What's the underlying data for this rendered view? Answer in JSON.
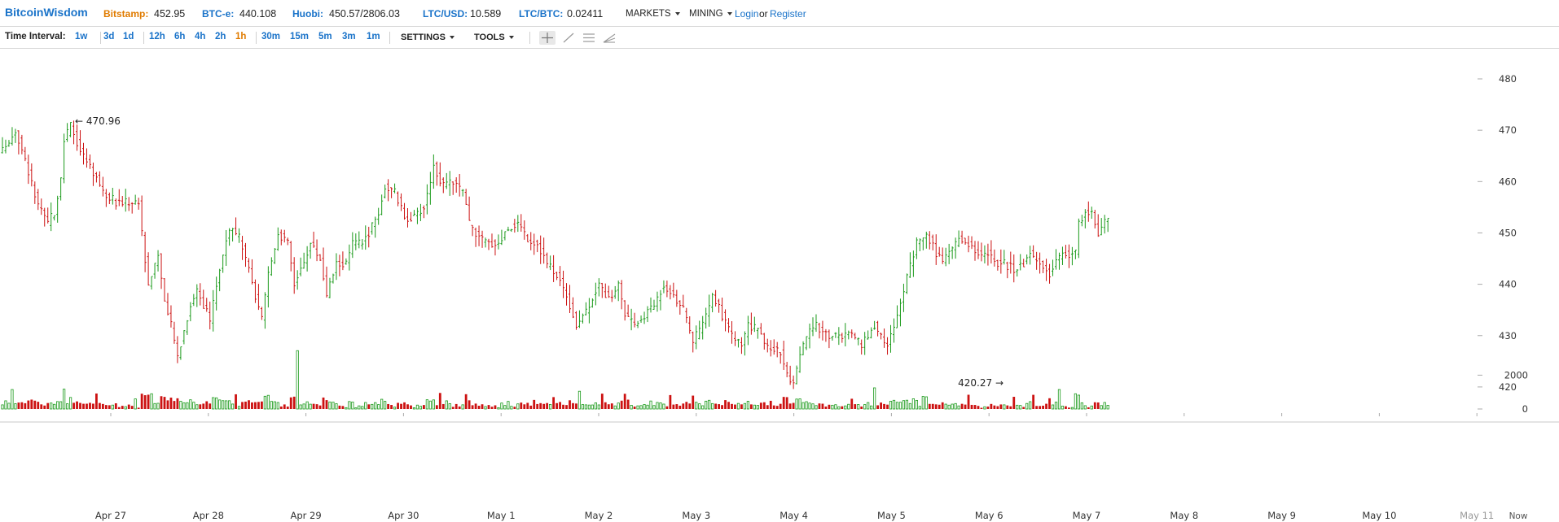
{
  "header": {
    "brand": "BitcoinWisdom",
    "tickers": [
      {
        "label": "Bitstamp:",
        "value": "452.95",
        "color": "#e07b00"
      },
      {
        "label": "BTC-e:",
        "value": "440.108",
        "color": "#1a73c9"
      },
      {
        "label": "Huobi:",
        "value": "450.57/2806.03",
        "color": "#1a73c9"
      },
      {
        "label": "LTC/USD:",
        "value": "10.589",
        "color": "#1a73c9"
      },
      {
        "label": "LTC/BTC:",
        "value": "0.02411",
        "color": "#1a73c9"
      }
    ],
    "menus": [
      "MARKETS",
      "MINING"
    ],
    "login": "Login",
    "or": "or",
    "register": "Register"
  },
  "toolbar": {
    "label": "Time Interval:",
    "intervals": [
      "1w",
      "3d",
      "1d",
      "12h",
      "6h",
      "4h",
      "2h",
      "1h",
      "30m",
      "15m",
      "5m",
      "3m",
      "1m"
    ],
    "active_interval": "1h",
    "settings": "SETTINGS",
    "tools": "TOOLS",
    "tool_icons": [
      "crosshair-icon",
      "line-tool-icon",
      "horizontal-lines-icon",
      "fibonacci-tool-icon"
    ]
  },
  "chart_data": {
    "type": "ohlc",
    "colors": {
      "up": "#1a9a1a",
      "down": "#cc1111"
    },
    "price_axis": {
      "ticks": [
        420,
        430,
        440,
        450,
        460,
        470,
        480
      ],
      "range": [
        414,
        488
      ]
    },
    "volume_axis": {
      "ticks": [
        0,
        2000
      ],
      "range": [
        0,
        3600
      ]
    },
    "x_labels": [
      "Apr 27",
      "Apr 28",
      "Apr 29",
      "Apr 30",
      "May 1",
      "May 2",
      "May 3",
      "May 4",
      "May 5",
      "May 6",
      "May 7",
      "May 8",
      "May 9",
      "May 10",
      "May 11"
    ],
    "x_label_last": "Now",
    "annotations": [
      {
        "text": "← 470.96",
        "value": 470.96
      },
      {
        "text": "420.27 →",
        "value": 420.27
      }
    ],
    "price_path": [
      [
        0,
        466
      ],
      [
        4,
        470
      ],
      [
        8,
        462
      ],
      [
        11,
        455
      ],
      [
        14,
        452
      ],
      [
        16,
        454
      ],
      [
        18,
        460
      ],
      [
        19,
        468
      ],
      [
        21,
        471
      ],
      [
        24,
        466
      ],
      [
        28,
        462
      ],
      [
        31,
        458
      ],
      [
        35,
        456
      ],
      [
        39,
        456
      ],
      [
        42,
        456
      ],
      [
        43,
        450
      ],
      [
        45,
        440
      ],
      [
        48,
        446
      ],
      [
        50,
        436
      ],
      [
        52,
        432
      ],
      [
        54,
        426
      ],
      [
        56,
        431
      ],
      [
        58,
        436
      ],
      [
        60,
        439
      ],
      [
        62,
        436
      ],
      [
        64,
        433
      ],
      [
        66,
        440
      ],
      [
        68,
        446
      ],
      [
        70,
        451
      ],
      [
        73,
        449
      ],
      [
        75,
        445
      ],
      [
        77,
        440
      ],
      [
        79,
        435
      ],
      [
        80,
        433
      ],
      [
        82,
        442
      ],
      [
        85,
        450
      ],
      [
        88,
        448
      ],
      [
        90,
        440
      ],
      [
        92,
        443
      ],
      [
        95,
        448
      ],
      [
        98,
        445
      ],
      [
        100,
        438
      ],
      [
        103,
        444
      ],
      [
        106,
        444
      ],
      [
        108,
        448
      ],
      [
        111,
        448
      ],
      [
        113,
        450
      ],
      [
        116,
        454
      ],
      [
        118,
        459
      ],
      [
        121,
        458
      ],
      [
        124,
        453
      ],
      [
        127,
        453
      ],
      [
        130,
        455
      ],
      [
        133,
        463
      ],
      [
        136,
        459
      ],
      [
        139,
        460
      ],
      [
        142,
        458
      ],
      [
        144,
        452
      ],
      [
        147,
        449
      ],
      [
        150,
        448
      ],
      [
        153,
        448
      ],
      [
        156,
        451
      ],
      [
        159,
        452
      ],
      [
        162,
        449
      ],
      [
        165,
        448
      ],
      [
        168,
        444
      ],
      [
        171,
        442
      ],
      [
        174,
        438
      ],
      [
        177,
        432
      ],
      [
        180,
        435
      ],
      [
        184,
        440
      ],
      [
        187,
        437
      ],
      [
        190,
        440
      ],
      [
        192,
        434
      ],
      [
        195,
        432
      ],
      [
        198,
        434
      ],
      [
        201,
        436
      ],
      [
        204,
        440
      ],
      [
        207,
        438
      ],
      [
        210,
        435
      ],
      [
        213,
        429
      ],
      [
        216,
        432
      ],
      [
        219,
        438
      ],
      [
        222,
        434
      ],
      [
        225,
        430
      ],
      [
        228,
        428
      ],
      [
        230,
        432
      ],
      [
        233,
        431
      ],
      [
        236,
        428
      ],
      [
        240,
        427
      ],
      [
        242,
        422
      ],
      [
        244,
        420.27
      ],
      [
        246,
        426
      ],
      [
        248,
        430
      ],
      [
        251,
        432
      ],
      [
        255,
        430
      ],
      [
        259,
        430
      ],
      [
        262,
        430
      ],
      [
        265,
        428
      ],
      [
        267,
        430
      ],
      [
        269,
        432
      ],
      [
        271,
        430
      ],
      [
        273,
        428
      ],
      [
        275,
        432
      ],
      [
        277,
        436
      ],
      [
        279,
        442
      ],
      [
        282,
        448
      ],
      [
        285,
        450
      ],
      [
        288,
        446
      ],
      [
        290,
        444
      ],
      [
        293,
        447
      ],
      [
        295,
        449
      ],
      [
        298,
        448
      ],
      [
        301,
        446
      ],
      [
        304,
        446
      ],
      [
        306,
        444
      ],
      [
        309,
        444
      ],
      [
        312,
        443
      ],
      [
        315,
        444
      ],
      [
        317,
        446
      ],
      [
        320,
        444
      ],
      [
        323,
        442
      ],
      [
        325,
        445
      ],
      [
        328,
        446
      ],
      [
        331,
        446
      ],
      [
        332,
        452
      ],
      [
        334,
        454
      ],
      [
        336,
        454
      ],
      [
        338,
        450
      ],
      [
        340,
        452
      ],
      [
        341,
        453
      ]
    ],
    "volume_peaks": [
      [
        3,
        1150
      ],
      [
        91,
        3450
      ],
      [
        269,
        1250
      ],
      [
        326,
        1150
      ],
      [
        331,
        900
      ]
    ]
  }
}
